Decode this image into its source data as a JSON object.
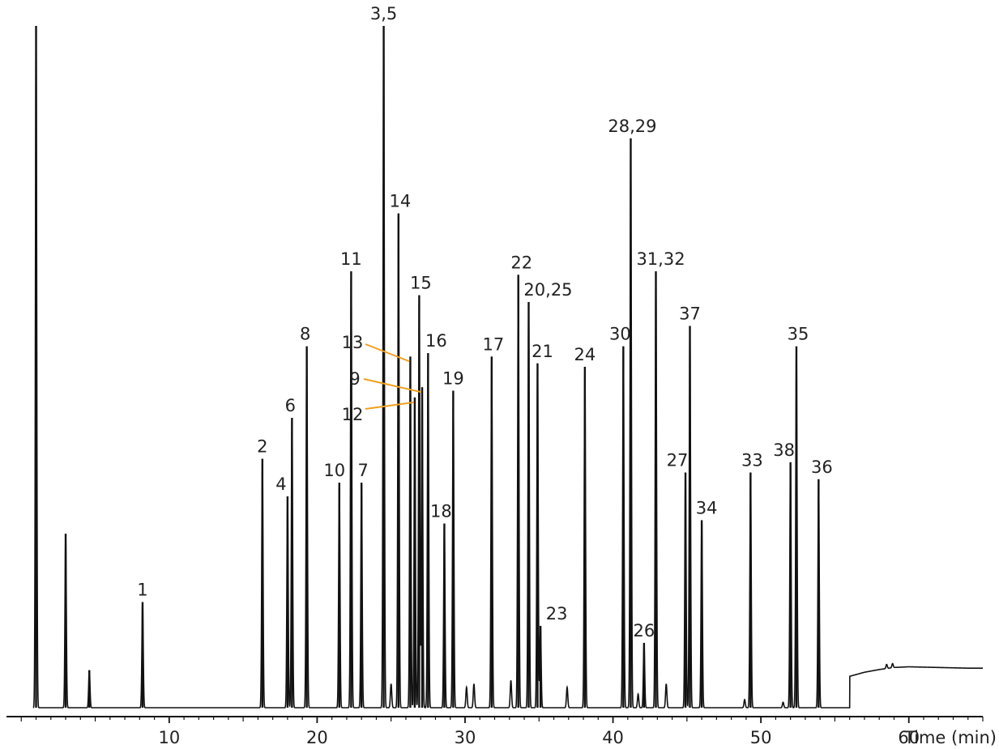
{
  "chart_data": {
    "type": "line",
    "xlabel": "Time (min)",
    "ylabel": "",
    "title": "",
    "xlim": [
      -1.0,
      65.0
    ],
    "ylim": [
      0,
      1000
    ],
    "x_ticks": [
      10,
      20,
      30,
      40,
      50,
      60
    ],
    "grid": false,
    "line_color": "#111111",
    "leader_line_color": "#f0a020",
    "baseline_points": [
      {
        "t": 56.0,
        "y": 46
      },
      {
        "t": 57.0,
        "y": 52
      },
      {
        "t": 58.0,
        "y": 56
      },
      {
        "t": 59.0,
        "y": 59
      },
      {
        "t": 60.0,
        "y": 60
      },
      {
        "t": 62.0,
        "y": 59
      },
      {
        "t": 64.0,
        "y": 58
      },
      {
        "t": 65.0,
        "y": 58
      }
    ],
    "peaks": [
      {
        "label": "",
        "t": 1.0,
        "height": 1000
      },
      {
        "label": "",
        "t": 3.0,
        "height": 255
      },
      {
        "label": "",
        "t": 4.6,
        "height": 55
      },
      {
        "label": "1",
        "t": 8.2,
        "height": 155
      },
      {
        "label": "2",
        "t": 16.3,
        "height": 365
      },
      {
        "label": "4",
        "t": 18.0,
        "height": 310
      },
      {
        "label": "6",
        "t": 18.3,
        "height": 425
      },
      {
        "label": "8",
        "t": 19.3,
        "height": 530
      },
      {
        "label": "10",
        "t": 21.5,
        "height": 330
      },
      {
        "label": "11",
        "t": 22.3,
        "height": 640
      },
      {
        "label": "7",
        "t": 23.0,
        "height": 330
      },
      {
        "label": "3,5",
        "t": 24.5,
        "height": 1000
      },
      {
        "label": "14",
        "t": 25.5,
        "height": 725
      },
      {
        "label": "13",
        "t": 26.3,
        "height": 515
      },
      {
        "label": "12",
        "t": 26.6,
        "height": 455
      },
      {
        "label": "15",
        "t": 26.9,
        "height": 605
      },
      {
        "label": "9",
        "t": 27.1,
        "height": 470
      },
      {
        "label": "16",
        "t": 27.5,
        "height": 520
      },
      {
        "label": "18",
        "t": 28.6,
        "height": 270
      },
      {
        "label": "19",
        "t": 29.2,
        "height": 465
      },
      {
        "label": "17",
        "t": 31.8,
        "height": 515
      },
      {
        "label": "22",
        "t": 33.6,
        "height": 635
      },
      {
        "label": "20,25",
        "t": 34.3,
        "height": 595
      },
      {
        "label": "21",
        "t": 34.9,
        "height": 505
      },
      {
        "label": "23",
        "t": 35.1,
        "height": 120
      },
      {
        "label": "24",
        "t": 38.1,
        "height": 500
      },
      {
        "label": "30",
        "t": 40.7,
        "height": 530
      },
      {
        "label": "28,29",
        "t": 41.2,
        "height": 835
      },
      {
        "label": "26",
        "t": 42.1,
        "height": 95
      },
      {
        "label": "31,32",
        "t": 42.9,
        "height": 640
      },
      {
        "label": "27",
        "t": 44.9,
        "height": 345
      },
      {
        "label": "37",
        "t": 45.2,
        "height": 560
      },
      {
        "label": "34",
        "t": 46.0,
        "height": 275
      },
      {
        "label": "33",
        "t": 49.3,
        "height": 345
      },
      {
        "label": "38",
        "t": 52.0,
        "height": 360
      },
      {
        "label": "35",
        "t": 52.4,
        "height": 530
      },
      {
        "label": "36",
        "t": 53.9,
        "height": 335
      }
    ],
    "minor_peaks": [
      {
        "t": 25.0,
        "height": 35
      },
      {
        "t": 30.1,
        "height": 30
      },
      {
        "t": 30.6,
        "height": 35
      },
      {
        "t": 33.1,
        "height": 40
      },
      {
        "t": 36.9,
        "height": 30
      },
      {
        "t": 41.7,
        "height": 20
      },
      {
        "t": 43.6,
        "height": 35
      },
      {
        "t": 48.9,
        "height": 12
      },
      {
        "t": 51.5,
        "height": 8
      },
      {
        "t": 58.5,
        "height": 6
      },
      {
        "t": 58.9,
        "height": 6
      }
    ]
  }
}
